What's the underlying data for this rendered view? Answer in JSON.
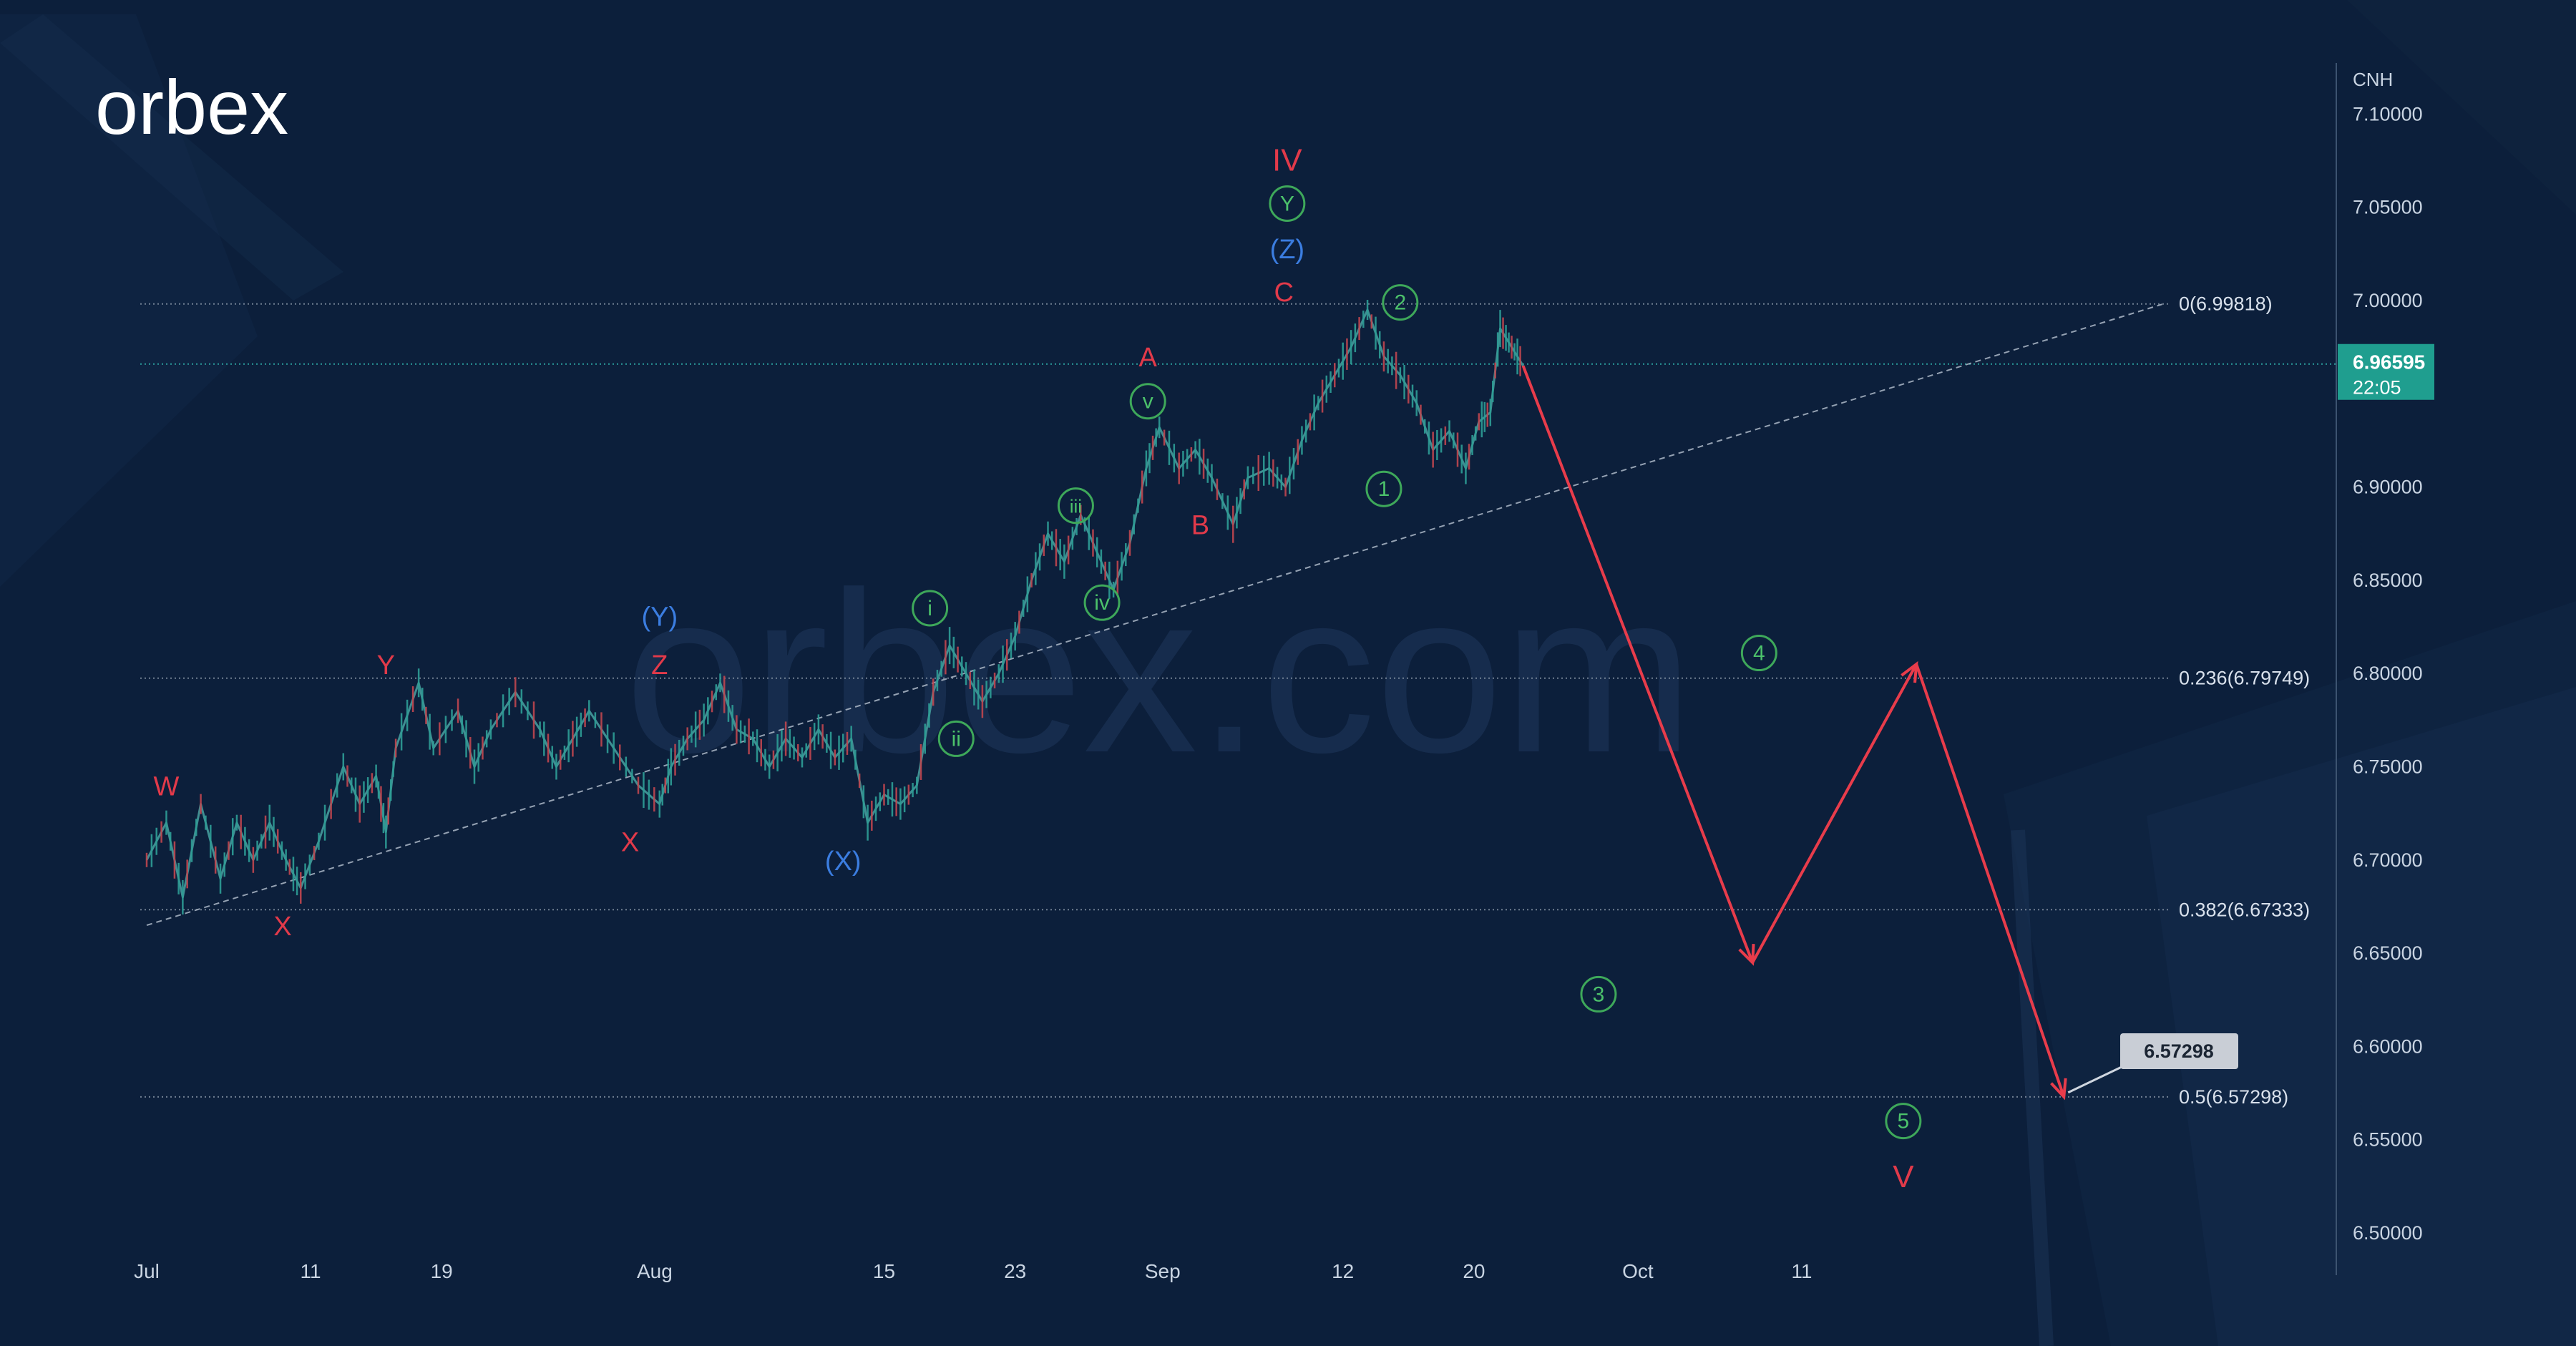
{
  "brand": {
    "logo_text": "orbex",
    "watermark": "orbex.com"
  },
  "chart_data": {
    "type": "line",
    "currency_label": "CNH",
    "ylim": [
      6.48,
      7.13
    ],
    "x_ticks": [
      {
        "label": "Jul",
        "day": 0
      },
      {
        "label": "11",
        "day": 10
      },
      {
        "label": "19",
        "day": 18
      },
      {
        "label": "Aug",
        "day": 31
      },
      {
        "label": "15",
        "day": 45
      },
      {
        "label": "23",
        "day": 53
      },
      {
        "label": "Sep",
        "day": 62
      },
      {
        "label": "12",
        "day": 73
      },
      {
        "label": "20",
        "day": 81
      },
      {
        "label": "Oct",
        "day": 91
      },
      {
        "label": "11",
        "day": 101
      }
    ],
    "y_ticks": [
      "7.10000",
      "7.05000",
      "7.00000",
      "6.90000",
      "6.85000",
      "6.80000",
      "6.75000",
      "6.70000",
      "6.65000",
      "6.60000",
      "6.55000",
      "6.50000"
    ],
    "current_price": {
      "price": 6.96595,
      "label": "6.96595",
      "countdown": "22:05"
    },
    "fib_levels": [
      {
        "label": "0(6.99818)",
        "price": 6.99818
      },
      {
        "label": "0.236(6.79749)",
        "price": 6.79749
      },
      {
        "label": "0.382(6.67333)",
        "price": 6.67333
      },
      {
        "label": "0.5(6.57298)",
        "price": 6.57298
      }
    ],
    "trendline": [
      {
        "day": 0,
        "price": 6.665
      },
      {
        "day": 123,
        "price": 6.998
      }
    ],
    "price_path": [
      {
        "day": 0,
        "price": 6.7
      },
      {
        "day": 1.2,
        "price": 6.72
      },
      {
        "day": 2.2,
        "price": 6.68
      },
      {
        "day": 3.3,
        "price": 6.73
      },
      {
        "day": 4.5,
        "price": 6.69
      },
      {
        "day": 5.5,
        "price": 6.72
      },
      {
        "day": 6.5,
        "price": 6.7
      },
      {
        "day": 7.5,
        "price": 6.72
      },
      {
        "day": 8.5,
        "price": 6.7
      },
      {
        "day": 9.4,
        "price": 6.685
      },
      {
        "day": 10.5,
        "price": 6.71
      },
      {
        "day": 12,
        "price": 6.75
      },
      {
        "day": 13,
        "price": 6.73
      },
      {
        "day": 14,
        "price": 6.745
      },
      {
        "day": 14.6,
        "price": 6.715
      },
      {
        "day": 15.2,
        "price": 6.76
      },
      {
        "day": 16.6,
        "price": 6.795
      },
      {
        "day": 17.5,
        "price": 6.76
      },
      {
        "day": 19,
        "price": 6.78
      },
      {
        "day": 20,
        "price": 6.75
      },
      {
        "day": 21,
        "price": 6.77
      },
      {
        "day": 22.5,
        "price": 6.79
      },
      {
        "day": 24,
        "price": 6.77
      },
      {
        "day": 25,
        "price": 6.75
      },
      {
        "day": 26,
        "price": 6.765
      },
      {
        "day": 27,
        "price": 6.78
      },
      {
        "day": 28.5,
        "price": 6.76
      },
      {
        "day": 30,
        "price": 6.74
      },
      {
        "day": 31.3,
        "price": 6.73
      },
      {
        "day": 32,
        "price": 6.75
      },
      {
        "day": 33,
        "price": 6.765
      },
      {
        "day": 34,
        "price": 6.775
      },
      {
        "day": 35,
        "price": 6.795
      },
      {
        "day": 36,
        "price": 6.77
      },
      {
        "day": 37,
        "price": 6.765
      },
      {
        "day": 38,
        "price": 6.75
      },
      {
        "day": 39,
        "price": 6.765
      },
      {
        "day": 40,
        "price": 6.755
      },
      {
        "day": 41,
        "price": 6.77
      },
      {
        "day": 42,
        "price": 6.755
      },
      {
        "day": 43,
        "price": 6.765
      },
      {
        "day": 44,
        "price": 6.72
      },
      {
        "day": 45,
        "price": 6.735
      },
      {
        "day": 46,
        "price": 6.73
      },
      {
        "day": 47,
        "price": 6.74
      },
      {
        "day": 48,
        "price": 6.79
      },
      {
        "day": 49,
        "price": 6.815
      },
      {
        "day": 50,
        "price": 6.8
      },
      {
        "day": 51,
        "price": 6.785
      },
      {
        "day": 52,
        "price": 6.8
      },
      {
        "day": 53,
        "price": 6.82
      },
      {
        "day": 54,
        "price": 6.85
      },
      {
        "day": 55,
        "price": 6.875
      },
      {
        "day": 56,
        "price": 6.86
      },
      {
        "day": 57,
        "price": 6.885
      },
      {
        "day": 58,
        "price": 6.865
      },
      {
        "day": 59,
        "price": 6.845
      },
      {
        "day": 60,
        "price": 6.87
      },
      {
        "day": 61,
        "price": 6.91
      },
      {
        "day": 61.8,
        "price": 6.932
      },
      {
        "day": 63,
        "price": 6.91
      },
      {
        "day": 64,
        "price": 6.92
      },
      {
        "day": 65,
        "price": 6.905
      },
      {
        "day": 66.3,
        "price": 6.88
      },
      {
        "day": 67.2,
        "price": 6.905
      },
      {
        "day": 68.5,
        "price": 6.91
      },
      {
        "day": 69.5,
        "price": 6.9
      },
      {
        "day": 70.5,
        "price": 6.925
      },
      {
        "day": 71.5,
        "price": 6.945
      },
      {
        "day": 72.5,
        "price": 6.96
      },
      {
        "day": 73.5,
        "price": 6.975
      },
      {
        "day": 74.5,
        "price": 6.995
      },
      {
        "day": 75.5,
        "price": 6.97
      },
      {
        "day": 76.5,
        "price": 6.96
      },
      {
        "day": 77.5,
        "price": 6.945
      },
      {
        "day": 78.5,
        "price": 6.92
      },
      {
        "day": 79.5,
        "price": 6.93
      },
      {
        "day": 80.5,
        "price": 6.91
      },
      {
        "day": 81.3,
        "price": 6.935
      },
      {
        "day": 82,
        "price": 6.94
      },
      {
        "day": 82.6,
        "price": 6.985
      },
      {
        "day": 83.3,
        "price": 6.975
      },
      {
        "day": 84,
        "price": 6.965
      }
    ],
    "forecast_path": [
      {
        "day": 84,
        "price": 6.965
      },
      {
        "day": 98,
        "price": 6.645
      },
      {
        "day": 108,
        "price": 6.805
      },
      {
        "day": 117,
        "price": 6.573
      }
    ],
    "forecast_price_label": "6.57298",
    "wave_labels": [
      {
        "text": "W",
        "day": 1.2,
        "price": 6.74,
        "style": "red"
      },
      {
        "text": "X",
        "day": 8.3,
        "price": 6.665,
        "style": "red"
      },
      {
        "text": "Y",
        "day": 14.6,
        "price": 6.805,
        "style": "red"
      },
      {
        "text": "X",
        "day": 29.5,
        "price": 6.71,
        "style": "red"
      },
      {
        "text": "Z",
        "day": 31.3,
        "price": 6.805,
        "style": "red"
      },
      {
        "text": "(Y)",
        "day": 31.3,
        "price": 6.831,
        "style": "blue"
      },
      {
        "text": "(X)",
        "day": 42.5,
        "price": 6.7,
        "style": "blue"
      },
      {
        "text": "i",
        "day": 47.8,
        "price": 6.835,
        "style": "green-circle"
      },
      {
        "text": "ii",
        "day": 49.4,
        "price": 6.765,
        "style": "green-circle"
      },
      {
        "text": "iii",
        "day": 56.7,
        "price": 6.89,
        "style": "green-circle"
      },
      {
        "text": "iv",
        "day": 58.3,
        "price": 6.838,
        "style": "green-circle"
      },
      {
        "text": "v",
        "day": 61.1,
        "price": 6.946,
        "style": "green-circle"
      },
      {
        "text": "A",
        "day": 61.1,
        "price": 6.97,
        "style": "red"
      },
      {
        "text": "B",
        "day": 64.3,
        "price": 6.88,
        "style": "red"
      },
      {
        "text": "C",
        "day": 69.4,
        "price": 7.005,
        "style": "red"
      },
      {
        "text": "(Z)",
        "day": 69.6,
        "price": 7.028,
        "style": "blue"
      },
      {
        "text": "Y",
        "day": 69.6,
        "price": 7.052,
        "style": "green-circle"
      },
      {
        "text": "IV",
        "day": 69.6,
        "price": 7.075,
        "style": "red"
      },
      {
        "text": "1",
        "day": 75.5,
        "price": 6.899,
        "style": "green-circle"
      },
      {
        "text": "2",
        "day": 76.5,
        "price": 6.999,
        "style": "green-circle"
      },
      {
        "text": "3",
        "day": 88.6,
        "price": 6.628,
        "style": "green-circle"
      },
      {
        "text": "4",
        "day": 98.4,
        "price": 6.811,
        "style": "green-circle"
      },
      {
        "text": "5",
        "day": 107.2,
        "price": 6.56,
        "style": "green-circle"
      },
      {
        "text": "V",
        "day": 107.2,
        "price": 6.53,
        "style": "red"
      }
    ]
  }
}
